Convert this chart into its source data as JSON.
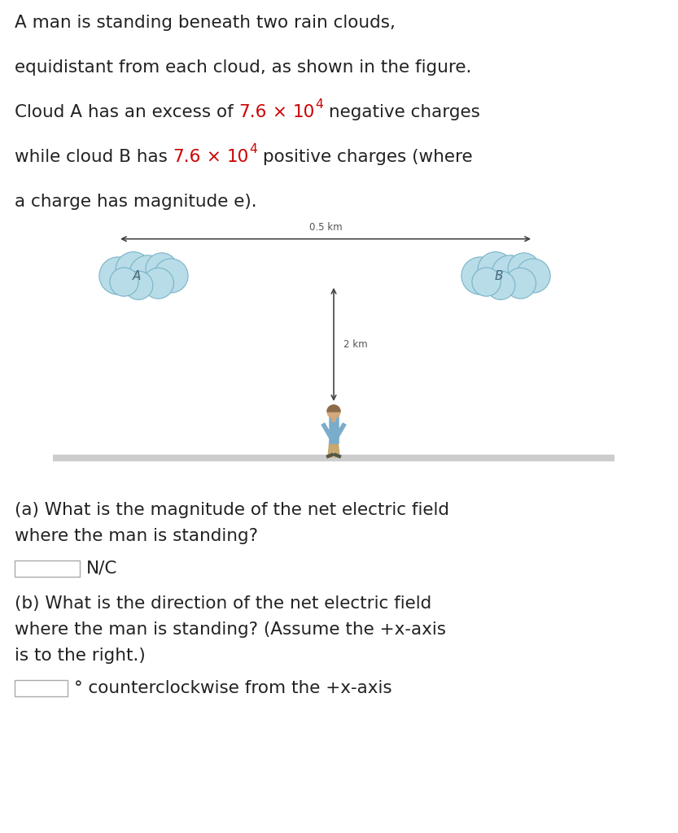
{
  "background_color": "#ffffff",
  "text_color": "#222222",
  "red_color": "#cc0000",
  "dim_color": "#555555",
  "cloud_color": "#b8dce8",
  "cloud_outline": "#7ab4c8",
  "ground_color": "#cccccc",
  "arrow_color": "#444444",
  "text_fontsize": 15.5,
  "small_fontsize": 8.5,
  "q_fontsize": 15.5,
  "label_a": "A",
  "label_b": "B",
  "dim_horiz": "0.5 km",
  "dim_vert": "2 km",
  "line1": "A man is standing beneath two rain clouds,",
  "line2": "equidistant from each cloud, as shown in the figure.",
  "line3_pre": "Cloud A has an excess of ",
  "line3_num": "7.6",
  "line3_x": " × ",
  "line3_base": "10",
  "line3_exp": "4",
  "line3_post": " negative charges",
  "line4_pre": "while cloud B has ",
  "line4_num": "7.6",
  "line4_x": " × ",
  "line4_base": "10",
  "line4_exp": "4",
  "line4_post": " positive charges (where",
  "line5": "a charge has magnitude e).",
  "qa1": "(a) What is the magnitude of the net electric field",
  "qa2": "where the man is standing?",
  "unit_a": "N/C",
  "qb1": "(b) What is the direction of the net electric field",
  "qb2": "where the man is standing? (Assume the +x-axis",
  "qb3": "is to the right.)",
  "unit_b": "° counterclockwise from the +x-axis"
}
